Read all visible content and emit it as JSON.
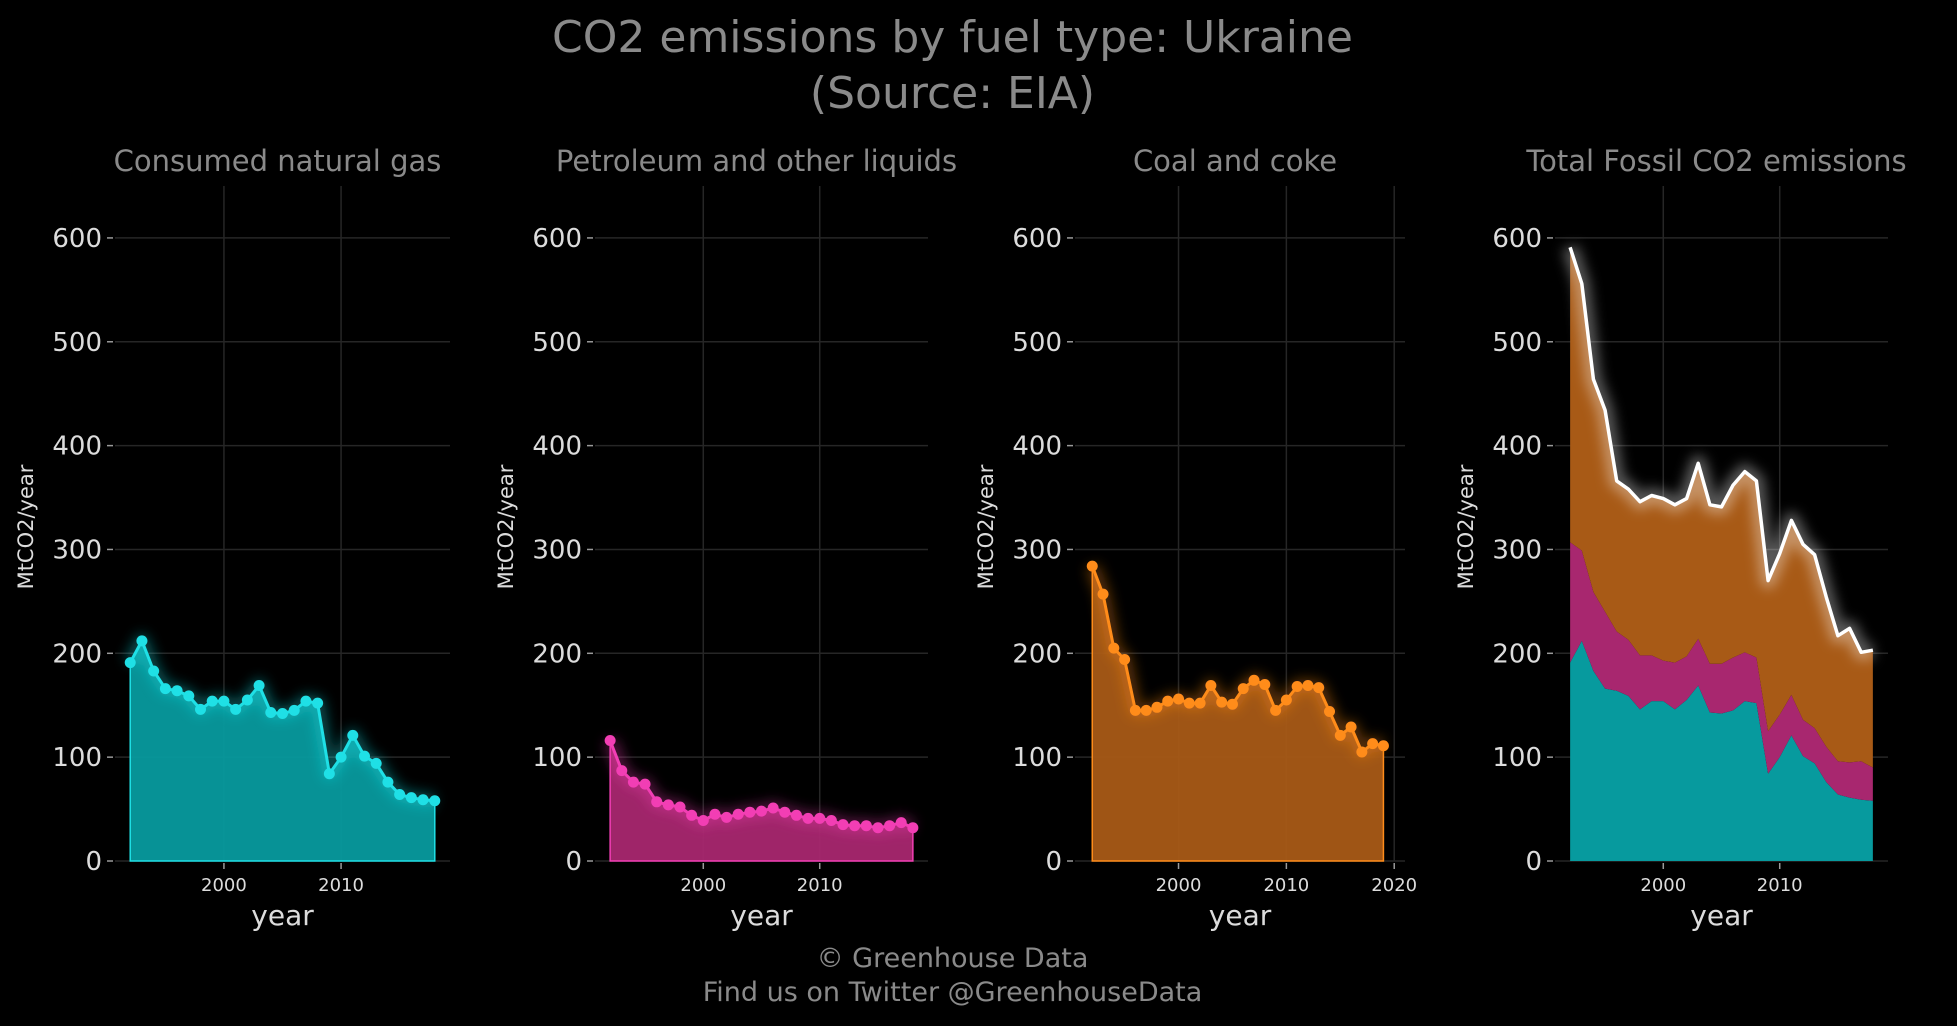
{
  "title": {
    "line1": "CO2 emissions by fuel type: Ukraine",
    "line2": "(Source: EIA)"
  },
  "footer": {
    "line1": "© Greenhouse Data",
    "line2": "Find us on Twitter @GreenhouseData"
  },
  "chart_data": [
    {
      "type": "area",
      "title": "Consumed natural gas",
      "xlabel": "year",
      "ylabel": "MtCO2/year",
      "ylim": [
        0,
        650
      ],
      "yticks": [
        0,
        100,
        200,
        300,
        400,
        500,
        600
      ],
      "xticks": [
        2000,
        2010
      ],
      "color": "#1fe0e6",
      "fill": "#079a9e",
      "x": [
        1992,
        1993,
        1994,
        1995,
        1996,
        1997,
        1998,
        1999,
        2000,
        2001,
        2002,
        2003,
        2004,
        2005,
        2006,
        2007,
        2008,
        2009,
        2010,
        2011,
        2012,
        2013,
        2014,
        2015,
        2016,
        2017,
        2018
      ],
      "values": [
        191,
        212,
        183,
        166,
        164,
        159,
        146,
        154,
        154,
        146,
        155,
        169,
        143,
        142,
        145,
        154,
        152,
        84,
        100,
        121,
        101,
        94,
        76,
        64,
        61,
        59,
        58
      ]
    },
    {
      "type": "area",
      "title": "Petroleum and other liquids",
      "xlabel": "year",
      "ylabel": "MtCO2/year",
      "ylim": [
        0,
        650
      ],
      "yticks": [
        0,
        100,
        200,
        300,
        400,
        500,
        600
      ],
      "xticks": [
        2000,
        2010
      ],
      "color": "#f23eb4",
      "fill": "#a8276f",
      "x": [
        1992,
        1993,
        1994,
        1995,
        1996,
        1997,
        1998,
        1999,
        2000,
        2001,
        2002,
        2003,
        2004,
        2005,
        2006,
        2007,
        2008,
        2009,
        2010,
        2011,
        2012,
        2013,
        2014,
        2015,
        2016,
        2017,
        2018
      ],
      "values": [
        116,
        87,
        76,
        74,
        57,
        54,
        52,
        44,
        39,
        45,
        42,
        45,
        47,
        48,
        51,
        47,
        44,
        41,
        41,
        39,
        35,
        34,
        34,
        32,
        34,
        37,
        32
      ]
    },
    {
      "type": "area",
      "title": "Coal and coke",
      "xlabel": "year",
      "ylabel": "MtCO2/year",
      "ylim": [
        0,
        650
      ],
      "yticks": [
        0,
        100,
        200,
        300,
        400,
        500,
        600
      ],
      "xticks": [
        2000,
        2010,
        2020
      ],
      "color": "#ff8c1a",
      "fill": "#a85a16",
      "x": [
        1992,
        1993,
        1994,
        1995,
        1996,
        1997,
        1998,
        1999,
        2000,
        2001,
        2002,
        2003,
        2004,
        2005,
        2006,
        2007,
        2008,
        2009,
        2010,
        2011,
        2012,
        2013,
        2014,
        2015,
        2016,
        2017,
        2018,
        2019
      ],
      "values": [
        284,
        257,
        205,
        194,
        145,
        145,
        148,
        154,
        156,
        152,
        152,
        169,
        153,
        151,
        166,
        174,
        170,
        145,
        155,
        168,
        169,
        167,
        144,
        121,
        129,
        105,
        113,
        111
      ]
    },
    {
      "type": "area",
      "title": "Total Fossil CO2 emissions",
      "xlabel": "year",
      "ylabel": "MtCO2/year",
      "ylim": [
        0,
        650
      ],
      "yticks": [
        0,
        100,
        200,
        300,
        400,
        500,
        600
      ],
      "xticks": [
        2000,
        2010
      ],
      "stacked": true,
      "x": [
        1992,
        1993,
        1994,
        1995,
        1996,
        1997,
        1998,
        1999,
        2000,
        2001,
        2002,
        2003,
        2004,
        2005,
        2006,
        2007,
        2008,
        2009,
        2010,
        2011,
        2012,
        2013,
        2014,
        2015,
        2016,
        2017,
        2018
      ],
      "series": [
        {
          "values": [
            191,
            212,
            183,
            166,
            164,
            159,
            146,
            154,
            154,
            146,
            155,
            169,
            143,
            142,
            145,
            154,
            152,
            84,
            100,
            121,
            101,
            94,
            76,
            64,
            61,
            59,
            58
          ],
          "fill": "#079a9e"
        },
        {
          "values": [
            116,
            87,
            76,
            74,
            57,
            54,
            52,
            44,
            39,
            45,
            42,
            45,
            47,
            48,
            51,
            47,
            44,
            41,
            41,
            39,
            35,
            34,
            34,
            32,
            34,
            37,
            32
          ],
          "fill": "#a8276f"
        },
        {
          "values": [
            284,
            257,
            205,
            194,
            145,
            145,
            148,
            154,
            156,
            152,
            152,
            169,
            153,
            151,
            166,
            174,
            170,
            145,
            155,
            168,
            169,
            167,
            144,
            121,
            129,
            105,
            113
          ],
          "fill": "#a85a16"
        }
      ],
      "total_line_color": "#ffffff"
    }
  ]
}
